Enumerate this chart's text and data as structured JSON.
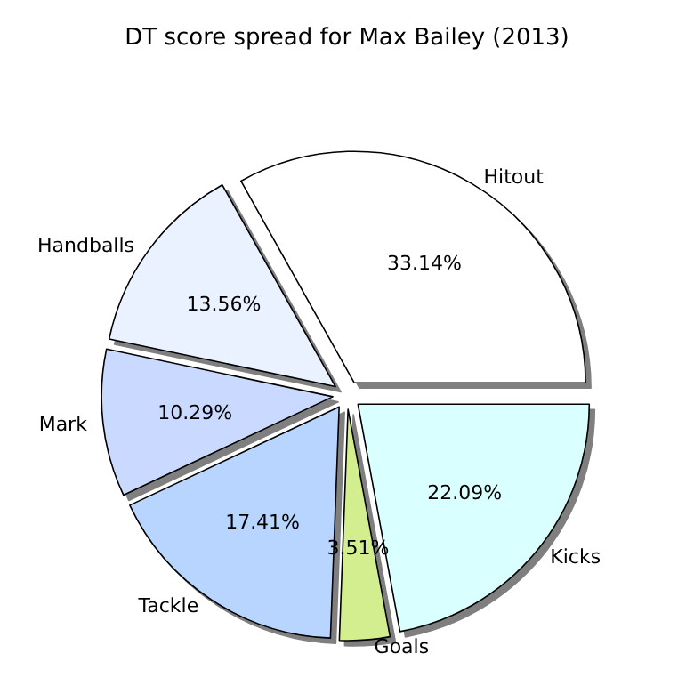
{
  "chart_data": {
    "type": "pie",
    "title": "DT score spread for Max Bailey (2013)",
    "categories": [
      "Hitout",
      "Handballs",
      "Mark",
      "Tackle",
      "Goals",
      "Kicks"
    ],
    "values": [
      33.14,
      13.56,
      10.29,
      17.41,
      3.51,
      22.09
    ],
    "value_labels": [
      "33.14%",
      "13.56%",
      "10.29%",
      "17.41%",
      "3.51%",
      "22.09%"
    ],
    "colors": [
      "#ffffff",
      "#eaf1ff",
      "#c9d9ff",
      "#b7d5ff",
      "#d2ee8e",
      "#d9ffff"
    ],
    "legend": false
  }
}
